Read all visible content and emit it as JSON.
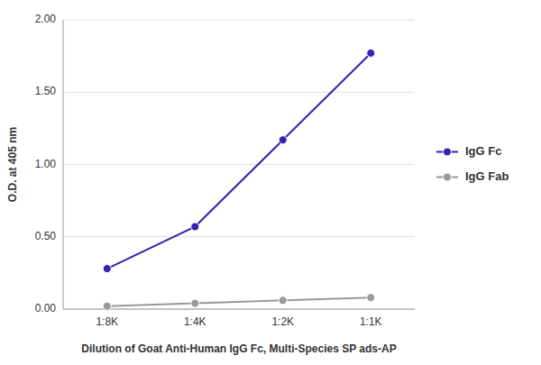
{
  "chart_data": {
    "type": "line",
    "categories": [
      "1:8K",
      "1:4K",
      "1:2K",
      "1:1K"
    ],
    "series": [
      {
        "name": "IgG Fc",
        "color": "#3b1db0",
        "marker": "circle",
        "values": [
          0.28,
          0.57,
          1.17,
          1.77
        ]
      },
      {
        "name": "IgG Fab",
        "color": "#999999",
        "marker": "circle",
        "values": [
          0.02,
          0.04,
          0.06,
          0.08
        ]
      }
    ],
    "xlabel": "Dilution of Goat Anti-Human IgG Fc, Multi-Species SP ads-AP",
    "ylabel": "O.D. at 405 nm",
    "ylim": [
      0.0,
      2.0
    ],
    "yticks": [
      {
        "value": 0.0,
        "label": "0.00"
      },
      {
        "value": 0.5,
        "label": "0.50"
      },
      {
        "value": 1.0,
        "label": "1.00"
      },
      {
        "value": 1.5,
        "label": "1.50"
      },
      {
        "value": 2.0,
        "label": "2.00"
      }
    ],
    "grid": true,
    "legend": "right"
  }
}
